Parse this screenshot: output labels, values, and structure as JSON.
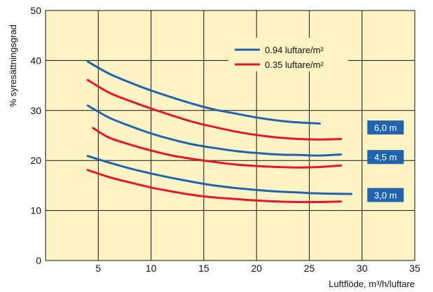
{
  "chart_data": {
    "type": "line",
    "xlabel": "Luftflöde, m³/h/luftare",
    "ylabel": "% syresättningsgrad",
    "xlim": [
      0,
      35
    ],
    "ylim": [
      0,
      50
    ],
    "xticks": [
      5,
      10,
      15,
      20,
      25,
      30,
      35
    ],
    "yticks": [
      0,
      10,
      20,
      30,
      40,
      50
    ],
    "grid": true,
    "legend_position": "top-right",
    "background": "#fdf3c4",
    "legend": [
      {
        "label": "0.94 luftare/m²",
        "color": "#1f64ad"
      },
      {
        "label": "0.35 luftare/m²",
        "color": "#e4162b"
      }
    ],
    "depth_labels": [
      {
        "label": "6,0 m",
        "x": 30.7,
        "y": 26.6
      },
      {
        "label": "4,5 m",
        "x": 30.7,
        "y": 20.7
      },
      {
        "label": "3,0 m",
        "x": 30.7,
        "y": 13.1
      }
    ],
    "series": [
      {
        "legend_index": 0,
        "depth": "6,0 m",
        "color": "#1f64ad",
        "x": [
          4,
          6,
          8,
          10,
          12,
          14,
          16,
          18,
          20,
          22,
          24,
          26
        ],
        "y": [
          39.8,
          37.4,
          35.6,
          34.0,
          32.6,
          31.3,
          30.2,
          29.4,
          28.6,
          28.0,
          27.6,
          27.4
        ]
      },
      {
        "legend_index": 1,
        "depth": "6,0 m",
        "color": "#e4162b",
        "x": [
          4,
          6,
          8,
          10,
          12,
          14,
          16,
          18,
          20,
          22,
          24,
          26,
          28
        ],
        "y": [
          36.1,
          33.6,
          31.9,
          30.4,
          29.0,
          27.7,
          26.7,
          25.8,
          25.1,
          24.6,
          24.3,
          24.2,
          24.3
        ]
      },
      {
        "legend_index": 0,
        "depth": "4,5 m",
        "color": "#1f64ad",
        "x": [
          4,
          6,
          8,
          10,
          12,
          14,
          16,
          18,
          20,
          22,
          24,
          26,
          28
        ],
        "y": [
          31.0,
          28.6,
          26.9,
          25.4,
          24.2,
          23.2,
          22.5,
          21.9,
          21.5,
          21.2,
          21.1,
          21.0,
          21.2
        ]
      },
      {
        "legend_index": 1,
        "depth": "4,5 m",
        "color": "#e4162b",
        "x": [
          4.5,
          6,
          8,
          10,
          12,
          14,
          16,
          18,
          20,
          22,
          24,
          26,
          28
        ],
        "y": [
          26.5,
          24.6,
          23.2,
          22.0,
          21.0,
          20.3,
          19.7,
          19.2,
          18.9,
          18.7,
          18.6,
          18.7,
          19.0
        ]
      },
      {
        "legend_index": 0,
        "depth": "3,0 m",
        "color": "#1f64ad",
        "x": [
          4,
          6,
          8,
          10,
          12,
          14,
          16,
          18,
          20,
          22,
          24,
          26,
          29
        ],
        "y": [
          20.9,
          19.6,
          18.4,
          17.4,
          16.5,
          15.7,
          15.0,
          14.5,
          14.1,
          13.8,
          13.6,
          13.4,
          13.3
        ]
      },
      {
        "legend_index": 1,
        "depth": "3,0 m",
        "color": "#e4162b",
        "x": [
          4,
          6,
          8,
          10,
          12,
          14,
          16,
          18,
          20,
          22,
          24,
          26,
          28
        ],
        "y": [
          18.1,
          16.7,
          15.6,
          14.6,
          13.8,
          13.1,
          12.6,
          12.3,
          12.0,
          11.8,
          11.7,
          11.7,
          11.8
        ]
      }
    ]
  }
}
